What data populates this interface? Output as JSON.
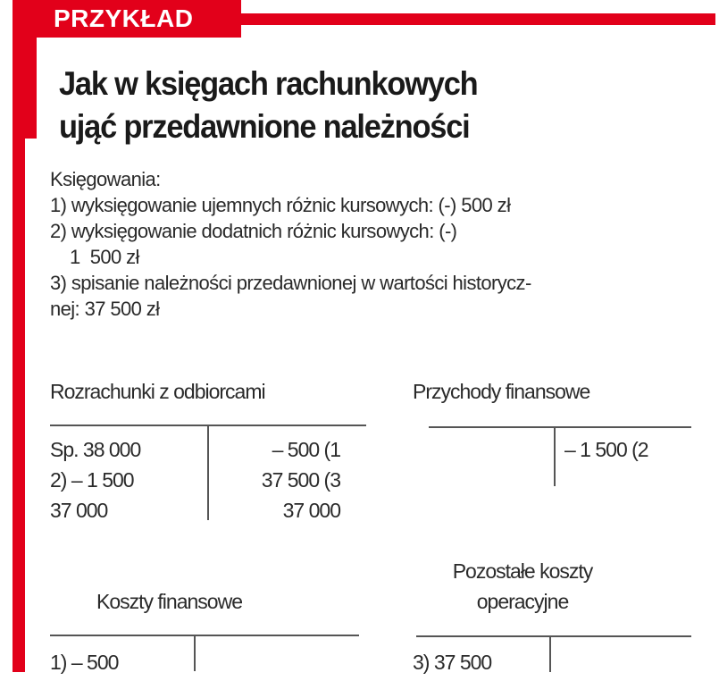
{
  "header": {
    "tag": "PRZYKŁAD",
    "title_line1": "Jak w księgach rachunkowych",
    "title_line2": "ująć przedawnione należności",
    "accent_color": "#e2001a"
  },
  "body": {
    "lines": [
      "Księgowania:",
      "1) wyksięgowanie ujemnych różnic kursowych: (-) 500 zł",
      "2) wyksięgowanie dodatnich różnic kursowych: (-)",
      "    1  500 zł",
      "3) spisanie należności przedawnionej w wartości historycz-",
      "nej: 37  500 zł"
    ]
  },
  "accounts": {
    "rozrachunki": {
      "title": "Rozrachunki z odbiorcami",
      "debit": [
        "Sp. 38 000",
        "2) – 1 500",
        "37 000"
      ],
      "credit": [
        "– 500 (1",
        "37 500 (3",
        "37 000"
      ]
    },
    "przychody": {
      "title": "Przychody finansowe",
      "debit": [],
      "credit": [
        "– 1 500 (2"
      ]
    },
    "koszty": {
      "title": "Koszty finansowe",
      "debit": [
        "1) – 500"
      ],
      "credit": []
    },
    "pozostale": {
      "title_line1": "Pozostałe koszty",
      "title_line2": "operacyjne",
      "debit": [
        "3) 37 500"
      ],
      "credit": []
    }
  }
}
